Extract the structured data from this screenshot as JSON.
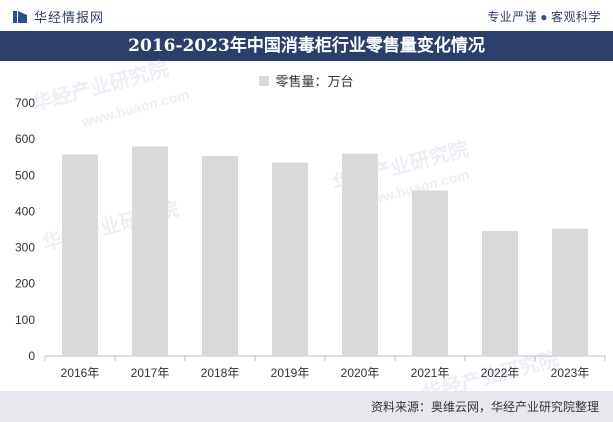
{
  "header": {
    "brand": "华经情报网",
    "slogan_left": "专业严谨",
    "slogan_right": "客观科学"
  },
  "title": "2016-2023年中国消毒柜行业零售量变化情况",
  "footer": {
    "source": "资料来源：奥维云网，华经产业研究院整理"
  },
  "watermark": {
    "text": "华经产业研究院",
    "url": "www.huaon.com"
  },
  "colors": {
    "title_bar": "#2c3f6b",
    "bar": "#d9d9d9",
    "footer": "#e6e8ed"
  },
  "chart_data": {
    "type": "bar",
    "categories": [
      "2016年",
      "2017年",
      "2018年",
      "2019年",
      "2020年",
      "2021年",
      "2022年",
      "2023年"
    ],
    "series": [
      {
        "name": "零售量：万台",
        "values": [
          558,
          580,
          553,
          535,
          560,
          458,
          346,
          352
        ]
      }
    ],
    "ylim": [
      0,
      700
    ],
    "yticks": [
      0,
      100,
      200,
      300,
      400,
      500,
      600,
      700
    ],
    "grid": false,
    "legend_position": "top-center"
  }
}
